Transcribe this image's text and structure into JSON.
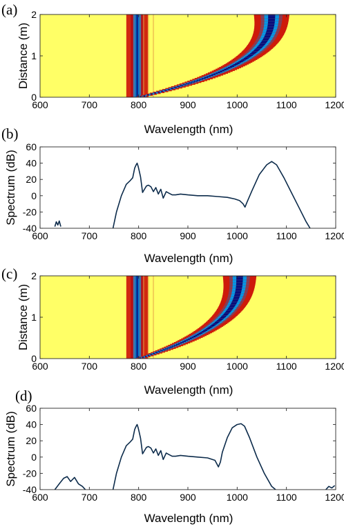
{
  "chart_data": [
    {
      "panel_label": "(a)",
      "type": "heatmap",
      "xlabel": "Wavelength (nm)",
      "ylabel": "Distance (m)",
      "xlim": [
        600,
        1200
      ],
      "ylim": [
        0,
        2
      ],
      "x_ticks": [
        "600",
        "700",
        "800",
        "900",
        "1000",
        "1100",
        "1200"
      ],
      "y_ticks": [
        "0",
        "1",
        "2"
      ],
      "colormap": [
        "#ffff66",
        "#c80000",
        "#00b4ff",
        "#0a0a78"
      ],
      "features": {
        "residual_pump_center": 797,
        "dispersive_wave_lines": [
          810,
          820,
          830
        ],
        "soliton_final_center": 1070,
        "soliton_final_width": 36,
        "soliton_start_center": 800
      }
    },
    {
      "panel_label": "(b)",
      "type": "line",
      "xlabel": "Wavelength (nm)",
      "ylabel": "Spectrum (dB)",
      "xlim": [
        600,
        1200
      ],
      "ylim": [
        -40,
        60
      ],
      "x_ticks": [
        "600",
        "700",
        "800",
        "900",
        "1000",
        "1100",
        "1200"
      ],
      "y_ticks": [
        "-40",
        "-20",
        "0",
        "20",
        "40",
        "60"
      ],
      "line_color": "#0b2a4a",
      "series": [
        {
          "x": [
            630,
            633,
            636,
            639,
            642
          ],
          "y": [
            -38,
            -32,
            -36,
            -31,
            -38
          ]
        },
        {
          "x": [
            748,
            755,
            765,
            775,
            782,
            788,
            792,
            795,
            797,
            799,
            801,
            804,
            808,
            812,
            816,
            820,
            825,
            830,
            835,
            840,
            845,
            850,
            856,
            862,
            868,
            875,
            885,
            900,
            920,
            940,
            960,
            980,
            995,
            1005,
            1012,
            1016,
            1020,
            1030,
            1045,
            1060,
            1070,
            1080,
            1095,
            1110,
            1125,
            1140,
            1148
          ],
          "y": [
            -40,
            -20,
            0,
            14,
            18,
            22,
            34,
            38,
            40,
            36,
            31,
            23,
            4,
            8,
            12,
            13,
            11,
            5,
            10,
            2,
            8,
            -3,
            5,
            3,
            1,
            1,
            2,
            1,
            0,
            0,
            -1,
            -2,
            -4,
            -6,
            -10,
            -14,
            -8,
            6,
            26,
            38,
            42,
            38,
            22,
            4,
            -14,
            -32,
            -40
          ]
        }
      ]
    },
    {
      "panel_label": "(c)",
      "type": "heatmap",
      "xlabel": "Wavelength (nm)",
      "ylabel": "Distance (m)",
      "xlim": [
        600,
        1200
      ],
      "ylim": [
        0,
        2
      ],
      "x_ticks": [
        "600",
        "700",
        "800",
        "900",
        "1000",
        "1100",
        "1200"
      ],
      "y_ticks": [
        "0",
        "1",
        "2"
      ],
      "colormap": [
        "#ffff66",
        "#c80000",
        "#00b4ff",
        "#0a0a78"
      ],
      "features": {
        "residual_pump_center": 797,
        "dispersive_wave_lines": [
          810,
          820,
          830
        ],
        "soliton_final_center": 1005,
        "soliton_final_width": 34,
        "soliton_start_center": 800
      }
    },
    {
      "panel_label": "(d)",
      "type": "line",
      "xlabel": "Wavelength (nm)",
      "ylabel": "Spectrum (dB)",
      "xlim": [
        600,
        1200
      ],
      "ylim": [
        -40,
        60
      ],
      "x_ticks": [
        "600",
        "700",
        "800",
        "900",
        "1000",
        "1100",
        "1200"
      ],
      "y_ticks": [
        "-40",
        "-20",
        "0",
        "20",
        "40",
        "60"
      ],
      "line_color": "#0b2a4a",
      "series": [
        {
          "x": [
            630,
            640,
            648,
            655,
            662,
            670,
            678,
            686,
            692
          ],
          "y": [
            -40,
            -32,
            -26,
            -24,
            -30,
            -25,
            -33,
            -36,
            -40
          ]
        },
        {
          "x": [
            748,
            755,
            765,
            775,
            782,
            788,
            792,
            795,
            797,
            799,
            801,
            804,
            808,
            812,
            816,
            820,
            825,
            830,
            835,
            840,
            845,
            850,
            856,
            862,
            868,
            875,
            885,
            900,
            920,
            940,
            955,
            962,
            966,
            970,
            980,
            990,
            1000,
            1008,
            1015,
            1025,
            1040,
            1055,
            1070,
            1078
          ],
          "y": [
            -40,
            -20,
            0,
            14,
            18,
            22,
            34,
            38,
            40,
            36,
            31,
            23,
            4,
            8,
            12,
            13,
            11,
            5,
            10,
            2,
            8,
            -3,
            5,
            3,
            1,
            1,
            2,
            1,
            0,
            -1,
            -4,
            -12,
            -6,
            6,
            24,
            36,
            40,
            41,
            38,
            24,
            0,
            -20,
            -36,
            -40
          ]
        },
        {
          "x": [
            1180,
            1186,
            1192,
            1198
          ],
          "y": [
            -40,
            -36,
            -38,
            -35
          ]
        }
      ]
    }
  ]
}
